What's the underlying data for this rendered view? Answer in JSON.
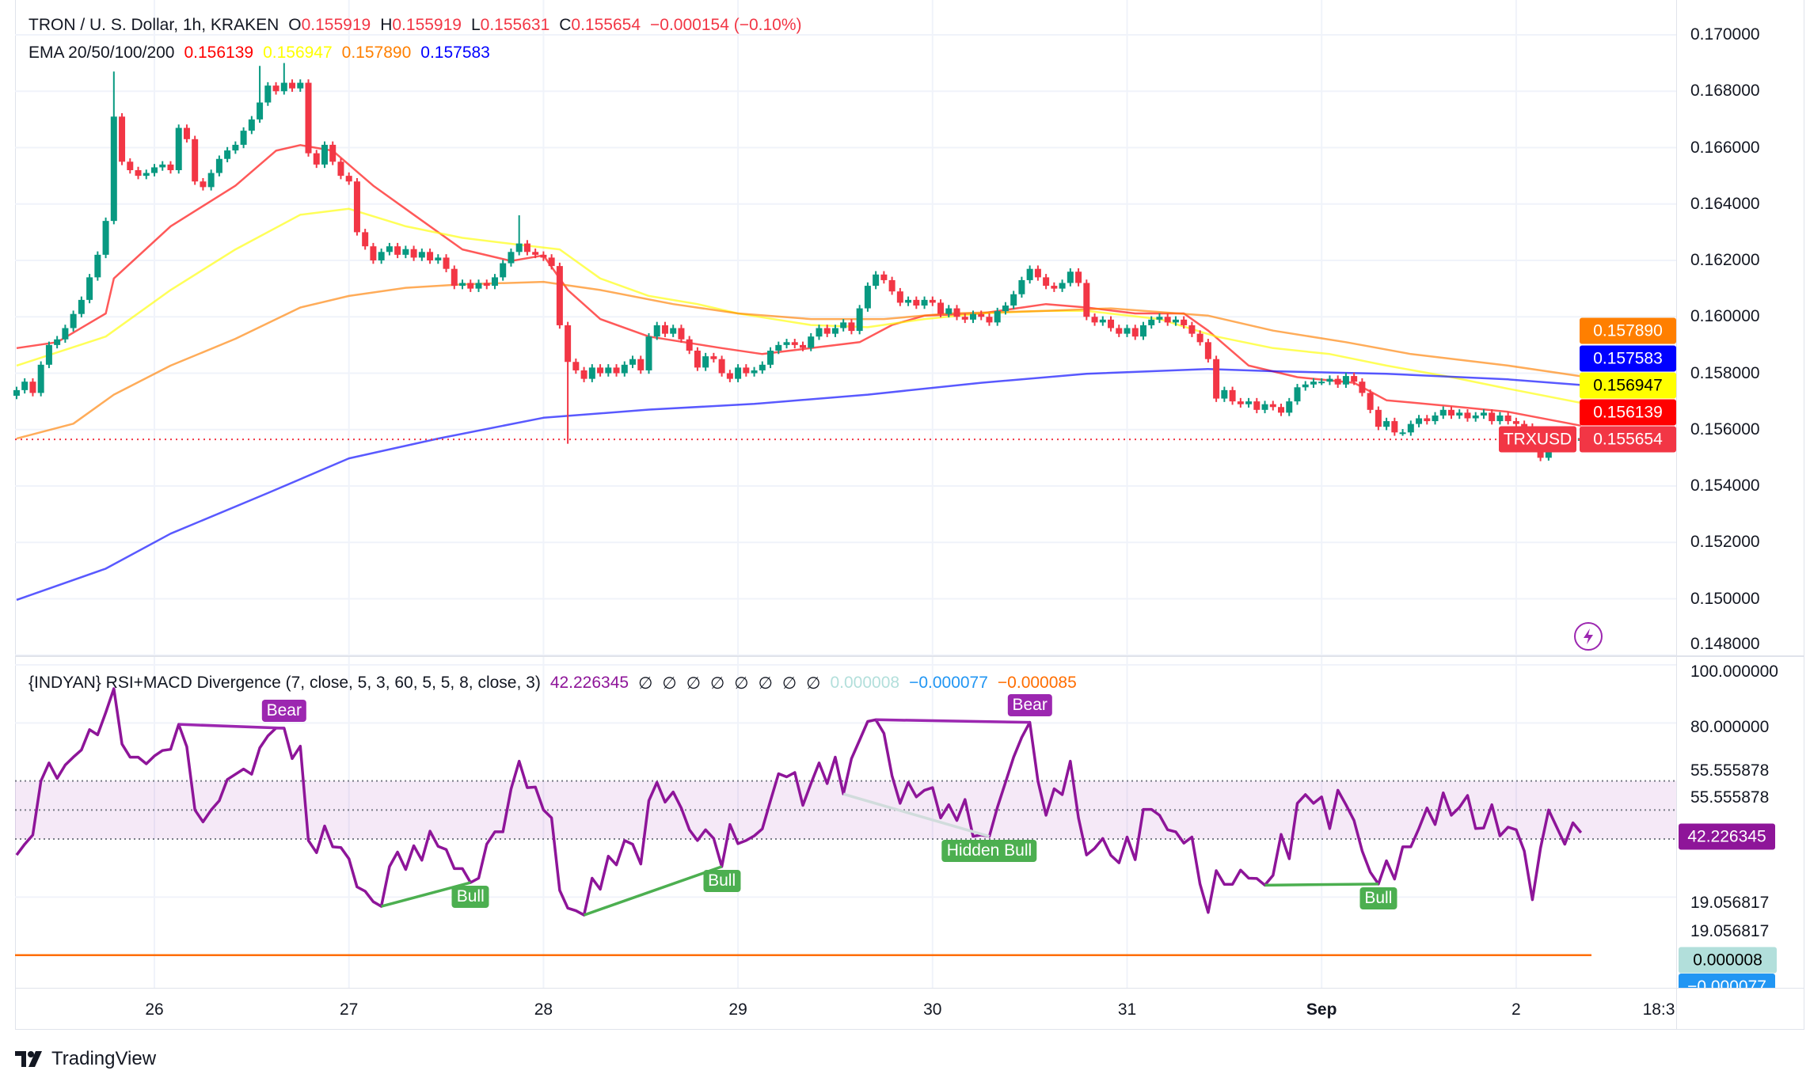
{
  "header": {
    "symbol": "TRON / U. S. Dollar, 1h, KRAKEN",
    "ohlc": [
      {
        "key": "O",
        "value": "0.155919"
      },
      {
        "key": "H",
        "value": "0.155919"
      },
      {
        "key": "L",
        "value": "0.155631"
      },
      {
        "key": "C",
        "value": "0.155654"
      }
    ],
    "change": "−0.000154 (−0.10%)",
    "ema_label": "EMA 20/50/100/200",
    "ema_values": [
      "0.156139",
      "0.156947",
      "0.157890",
      "0.157583"
    ]
  },
  "indicator": {
    "title": "{INDYAN} RSI+MACD Divergence (7, close, 5, 3, 60, 5, 5, 8, close, 3)",
    "rsi_value": "42.226345",
    "empty_values": [
      "∅",
      "∅",
      "∅",
      "∅",
      "∅",
      "∅",
      "∅",
      "∅"
    ],
    "macd_values": [
      "0.000008",
      "−0.000077",
      "−0.000085"
    ]
  },
  "price_axis": {
    "ticks": [
      "0.170000",
      "0.168000",
      "0.166000",
      "0.164000",
      "0.162000",
      "0.160000",
      "0.158000",
      "0.156000",
      "0.154000",
      "0.152000",
      "0.150000",
      "0.148000"
    ],
    "labels": [
      {
        "text": "0.157890",
        "bg": "#FF7F00",
        "fg": "#ffffff"
      },
      {
        "text": "0.157583",
        "bg": "#0000FF",
        "fg": "#ffffff"
      },
      {
        "text": "0.156947",
        "bg": "#FFFF00",
        "fg": "#000000"
      },
      {
        "text": "0.156139",
        "bg": "#FF0000",
        "fg": "#ffffff"
      },
      {
        "text": "0.155654",
        "bg": "#F23645",
        "fg": "#ffffff"
      }
    ],
    "symbol_tag": "TRXUSD"
  },
  "rsi_axis": {
    "labels": [
      "100.000000",
      "80.000000",
      "55.555878",
      "55.555878",
      "19.056817",
      "19.056817"
    ],
    "boxes": [
      {
        "text": "42.226345",
        "bg": "#8E1599",
        "fg": "#ffffff"
      },
      {
        "text": "0.000008",
        "bg": "#B2DFDB",
        "fg": "#000000"
      },
      {
        "text": "−0.000077",
        "bg": "#2196F3",
        "fg": "#ffffff"
      }
    ]
  },
  "time_axis": {
    "labels": [
      "26",
      "27",
      "28",
      "29",
      "30",
      "31",
      "Sep",
      "2",
      "18:3"
    ]
  },
  "branding": {
    "name": "TradingView"
  },
  "icons": {
    "quick_trade": "lightning-icon",
    "logo": "tradingview-logo"
  },
  "chart_data": [
    {
      "type": "candlestick",
      "title": "TRON / U. S. Dollar, 1h, KRAKEN",
      "interval": "1h",
      "start": "08-25 07",
      "ylim": [
        0.148,
        0.17
      ],
      "grid": true,
      "colors": {
        "up": "#089981",
        "down": "#F23645"
      },
      "first_open": 0.1572,
      "closes": [
        0.1574,
        0.1577,
        0.1573,
        0.1583,
        0.159,
        0.1592,
        0.1596,
        0.1601,
        0.1606,
        0.1614,
        0.1622,
        0.1634,
        0.1671,
        0.1655,
        0.1652,
        0.165,
        0.1651,
        0.1653,
        0.1654,
        0.1652,
        0.1667,
        0.1663,
        0.1648,
        0.1646,
        0.1651,
        0.1656,
        0.1659,
        0.1661,
        0.1666,
        0.167,
        0.1676,
        0.1682,
        0.168,
        0.1683,
        0.1681,
        0.1683,
        0.1658,
        0.1654,
        0.1661,
        0.1655,
        0.165,
        0.1648,
        0.163,
        0.1625,
        0.162,
        0.1623,
        0.1625,
        0.1622,
        0.1624,
        0.1621,
        0.1623,
        0.162,
        0.1621,
        0.1617,
        0.1611,
        0.1612,
        0.161,
        0.1612,
        0.1611,
        0.1614,
        0.1619,
        0.1623,
        0.1626,
        0.1623,
        0.1622,
        0.1621,
        0.1618,
        0.1597,
        0.1584,
        0.1581,
        0.1578,
        0.1582,
        0.158,
        0.1582,
        0.158,
        0.1583,
        0.1585,
        0.1581,
        0.1593,
        0.1597,
        0.1594,
        0.1596,
        0.1592,
        0.1588,
        0.1582,
        0.1586,
        0.1585,
        0.158,
        0.1578,
        0.1582,
        0.158,
        0.1581,
        0.1583,
        0.1588,
        0.159,
        0.1591,
        0.159,
        0.1589,
        0.1593,
        0.1596,
        0.1594,
        0.1596,
        0.1598,
        0.1595,
        0.1603,
        0.1611,
        0.1615,
        0.1613,
        0.1609,
        0.1605,
        0.1606,
        0.1604,
        0.1606,
        0.1605,
        0.1601,
        0.1603,
        0.16,
        0.1599,
        0.1601,
        0.16,
        0.1598,
        0.1602,
        0.1604,
        0.1608,
        0.1613,
        0.1617,
        0.1614,
        0.1611,
        0.161,
        0.1612,
        0.1616,
        0.1612,
        0.16,
        0.1598,
        0.1599,
        0.1596,
        0.1594,
        0.1596,
        0.1593,
        0.1597,
        0.1599,
        0.16,
        0.1598,
        0.1599,
        0.1597,
        0.1594,
        0.1591,
        0.1585,
        0.1571,
        0.1574,
        0.157,
        0.1569,
        0.157,
        0.1567,
        0.1569,
        0.1568,
        0.1566,
        0.157,
        0.1575,
        0.1576,
        0.1577,
        0.1577,
        0.1578,
        0.1576,
        0.1579,
        0.1577,
        0.1573,
        0.1567,
        0.1561,
        0.1563,
        0.1559,
        0.1559,
        0.1562,
        0.1564,
        0.1563,
        0.1565,
        0.1567,
        0.1565,
        0.1566,
        0.1564,
        0.1565,
        0.1566,
        0.1563,
        0.1565,
        0.1563,
        0.1562,
        0.1561,
        0.1558,
        0.155,
        0.1555,
        0.156,
        0.1558,
        0.1556,
        0.1557
      ],
      "wick_extremes": [
        {
          "t": "08-25 19",
          "high": 0.1687
        },
        {
          "t": "08-26 13",
          "high": 0.1689
        },
        {
          "t": "08-26 16",
          "high": 0.169
        },
        {
          "t": "08-27 21",
          "high": 0.1636
        },
        {
          "t": "08-28 03",
          "low": 0.1555
        },
        {
          "t": "09-02 04",
          "low": 0.1549
        }
      ],
      "last_price": 0.155654,
      "ema": [
        {
          "name": "EMA 20",
          "color": "#FF0000",
          "points": [
            [
              "08-25 07",
              0.15889
            ],
            [
              "08-25 12",
              0.1591
            ],
            [
              "08-25 18",
              0.16012
            ],
            [
              "08-25 19",
              0.16136
            ],
            [
              "08-26 02",
              0.16321
            ],
            [
              "08-26 10",
              0.16465
            ],
            [
              "08-26 15",
              0.16589
            ],
            [
              "08-26 18",
              0.16609
            ],
            [
              "08-26 22",
              0.16589
            ],
            [
              "08-27 03",
              0.16465
            ],
            [
              "08-27 08",
              0.16362
            ],
            [
              "08-27 14",
              0.16239
            ],
            [
              "08-27 20",
              0.16198
            ],
            [
              "08-28 00",
              0.16218
            ],
            [
              "08-28 03",
              0.16095
            ],
            [
              "08-28 07",
              0.15992
            ],
            [
              "08-28 13",
              0.1593
            ],
            [
              "08-28 22",
              0.15889
            ],
            [
              "08-29 03",
              0.15868
            ],
            [
              "08-29 09",
              0.15889
            ],
            [
              "08-29 15",
              0.1591
            ],
            [
              "08-29 19",
              0.15971
            ],
            [
              "08-29 23",
              0.16004
            ],
            [
              "08-30 06",
              0.16012
            ],
            [
              "08-30 14",
              0.16045
            ],
            [
              "08-30 19",
              0.16033
            ],
            [
              "08-31 01",
              0.16012
            ],
            [
              "08-31 07",
              0.16012
            ],
            [
              "08-31 10",
              0.15951
            ],
            [
              "08-31 15",
              0.15827
            ],
            [
              "08-31 21",
              0.15786
            ],
            [
              "09-01 04",
              0.15766
            ],
            [
              "09-01 08",
              0.15704
            ],
            [
              "09-01 16",
              0.15683
            ],
            [
              "09-01 23",
              0.15663
            ],
            [
              "09-02 08",
              0.156139
            ]
          ]
        },
        {
          "name": "EMA 50",
          "color": "#FFFF00",
          "points": [
            [
              "08-25 07",
              0.15827
            ],
            [
              "08-25 18",
              0.1593
            ],
            [
              "08-26 02",
              0.16095
            ],
            [
              "08-26 10",
              0.16239
            ],
            [
              "08-26 18",
              0.16362
            ],
            [
              "08-27 00",
              0.16383
            ],
            [
              "08-27 07",
              0.16321
            ],
            [
              "08-27 14",
              0.1628
            ],
            [
              "08-27 20",
              0.16259
            ],
            [
              "08-28 02",
              0.16239
            ],
            [
              "08-28 07",
              0.16136
            ],
            [
              "08-28 13",
              0.16074
            ],
            [
              "08-28 19",
              0.16045
            ],
            [
              "08-29 00",
              0.16012
            ],
            [
              "08-29 09",
              0.15971
            ],
            [
              "08-29 16",
              0.15963
            ],
            [
              "08-29 23",
              0.15992
            ],
            [
              "08-30 06",
              0.16012
            ],
            [
              "08-30 14",
              0.16021
            ],
            [
              "08-30 19",
              0.16021
            ],
            [
              "08-31 04",
              0.15992
            ],
            [
              "08-31 11",
              0.1593
            ],
            [
              "08-31 18",
              0.15889
            ],
            [
              "09-01 01",
              0.15868
            ],
            [
              "09-01 08",
              0.15827
            ],
            [
              "09-01 16",
              0.15786
            ],
            [
              "09-01 23",
              0.15745
            ],
            [
              "09-02 08",
              0.156947
            ]
          ]
        },
        {
          "name": "EMA 100",
          "color": "#FF7F00",
          "points": [
            [
              "08-25 07",
              0.15568
            ],
            [
              "08-25 14",
              0.15621
            ],
            [
              "08-25 19",
              0.15724
            ],
            [
              "08-26 02",
              0.15827
            ],
            [
              "08-26 10",
              0.15922
            ],
            [
              "08-26 18",
              0.16033
            ],
            [
              "08-27 00",
              0.16074
            ],
            [
              "08-27 07",
              0.16103
            ],
            [
              "08-27 14",
              0.16115
            ],
            [
              "08-28 00",
              0.16124
            ],
            [
              "08-28 07",
              0.16095
            ],
            [
              "08-28 16",
              0.16045
            ],
            [
              "08-29 00",
              0.16012
            ],
            [
              "08-29 09",
              0.15992
            ],
            [
              "08-29 18",
              0.15992
            ],
            [
              "08-30 02",
              0.16012
            ],
            [
              "08-30 14",
              0.16021
            ],
            [
              "08-30 22",
              0.1603
            ],
            [
              "08-31 10",
              0.16004
            ],
            [
              "08-31 18",
              0.15951
            ],
            [
              "09-01 03",
              0.1591
            ],
            [
              "09-01 11",
              0.15868
            ],
            [
              "09-01 23",
              0.15827
            ],
            [
              "09-02 08",
              0.15789
            ]
          ]
        },
        {
          "name": "EMA 200",
          "color": "#0000FF",
          "points": [
            [
              "08-25 07",
              0.14996
            ],
            [
              "08-25 18",
              0.15107
            ],
            [
              "08-26 02",
              0.15231
            ],
            [
              "08-26 14",
              0.15375
            ],
            [
              "08-27 00",
              0.15498
            ],
            [
              "08-27 11",
              0.15568
            ],
            [
              "08-28 00",
              0.15642
            ],
            [
              "08-28 13",
              0.15671
            ],
            [
              "08-29 02",
              0.15691
            ],
            [
              "08-29 16",
              0.15724
            ],
            [
              "08-30 06",
              0.15766
            ],
            [
              "08-30 19",
              0.15798
            ],
            [
              "08-31 10",
              0.15815
            ],
            [
              "08-31 18",
              0.15807
            ],
            [
              "09-01 08",
              0.15798
            ],
            [
              "09-01 23",
              0.15778
            ],
            [
              "09-02 08",
              0.157583
            ]
          ]
        }
      ]
    },
    {
      "type": "line",
      "title": "{INDYAN} RSI+MACD Divergence",
      "start": "08-25 07",
      "interval": "1h",
      "ylim": [
        0,
        100
      ],
      "band": [
        40,
        60
      ],
      "dotted_levels": [
        60,
        50,
        40
      ],
      "rsi_color": "#8E1599",
      "macd_zero_color": "#FF6D00",
      "rsi": [
        34.5,
        38.2,
        41.4,
        60,
        66.2,
        60.9,
        65.5,
        68.2,
        70.7,
        77.7,
        75.9,
        83.6,
        91.8,
        72.7,
        68.2,
        68.2,
        65.9,
        68.6,
        70.5,
        70.9,
        79.5,
        71.8,
        50,
        45.9,
        50,
        53.2,
        60.5,
        62.3,
        64.1,
        62.3,
        71.4,
        75.5,
        78.2,
        78.2,
        67.7,
        72,
        39.5,
        35.3,
        44.5,
        37.3,
        37.1,
        33.2,
        23.5,
        22,
        18.4,
        16.8,
        30.5,
        35.5,
        29.5,
        37.7,
        32.7,
        42.7,
        37.5,
        36.4,
        29.8,
        29.8,
        25,
        26.5,
        38.2,
        42.5,
        42.5,
        57.3,
        66.8,
        57.7,
        57.9,
        50,
        47.3,
        22.3,
        16.2,
        15.3,
        13.8,
        26.5,
        22.7,
        34.1,
        31.1,
        39.5,
        38.2,
        31.4,
        53.2,
        59.5,
        52.7,
        56.2,
        50.7,
        43.2,
        39.5,
        43.2,
        40.2,
        30.5,
        45,
        38.4,
        39.5,
        41.1,
        43.5,
        53.2,
        62.5,
        61.4,
        62.9,
        51.6,
        59.1,
        66.2,
        59.1,
        68.2,
        55.5,
        67.7,
        74.1,
        80.5,
        81.1,
        76.4,
        61.8,
        52.3,
        59.5,
        54.5,
        56.8,
        57.7,
        47.3,
        51.8,
        46.4,
        53.6,
        40.9,
        41.4,
        40.9,
        50.9,
        59.5,
        68.2,
        75,
        80.2,
        60,
        48.2,
        57.3,
        55.3,
        66.8,
        47.3,
        34.5,
        36.8,
        40.2,
        34.4,
        31.8,
        40.7,
        32.9,
        50.2,
        50.2,
        48.2,
        43.2,
        42.5,
        38.6,
        40.7,
        24.5,
        14.7,
        29.1,
        24.4,
        24.4,
        29.3,
        26.5,
        26.4,
        24.1,
        27.5,
        41.6,
        33.2,
        52.3,
        55.3,
        52.3,
        54.5,
        43.6,
        56.8,
        51.8,
        46.4,
        35.9,
        28.6,
        24.5,
        32.5,
        26.2,
        37.3,
        37.3,
        43.6,
        50.7,
        45,
        55.9,
        48.2,
        50.9,
        55,
        43.6,
        43.8,
        51.8,
        41.1,
        44.1,
        43.2,
        35.9,
        19.1,
        36.8,
        50,
        44.1,
        38.2,
        45.6,
        42.2
      ],
      "divergences": [
        {
          "label": "Bear",
          "from": "08-26 03",
          "to": "08-26 16",
          "color": "#9C27B0",
          "position": "above"
        },
        {
          "label": "Bull",
          "from": "08-27 04",
          "to": "08-27 15",
          "color": "#4CAF50",
          "position": "below"
        },
        {
          "label": "Bull",
          "from": "08-28 05",
          "to": "08-28 22",
          "color": "#4CAF50",
          "position": "below"
        },
        {
          "label": "Hidden Bull",
          "from": "08-29 13",
          "to": "08-30 07",
          "color": "#4CAF50",
          "line_color": "#D1DCDC",
          "position": "below"
        },
        {
          "label": "Bear",
          "from": "08-29 17",
          "to": "08-30 12",
          "color": "#9C27B0",
          "position": "above"
        },
        {
          "label": "Bull",
          "from": "08-31 17",
          "to": "09-01 07",
          "color": "#4CAF50",
          "position": "below"
        }
      ]
    }
  ]
}
